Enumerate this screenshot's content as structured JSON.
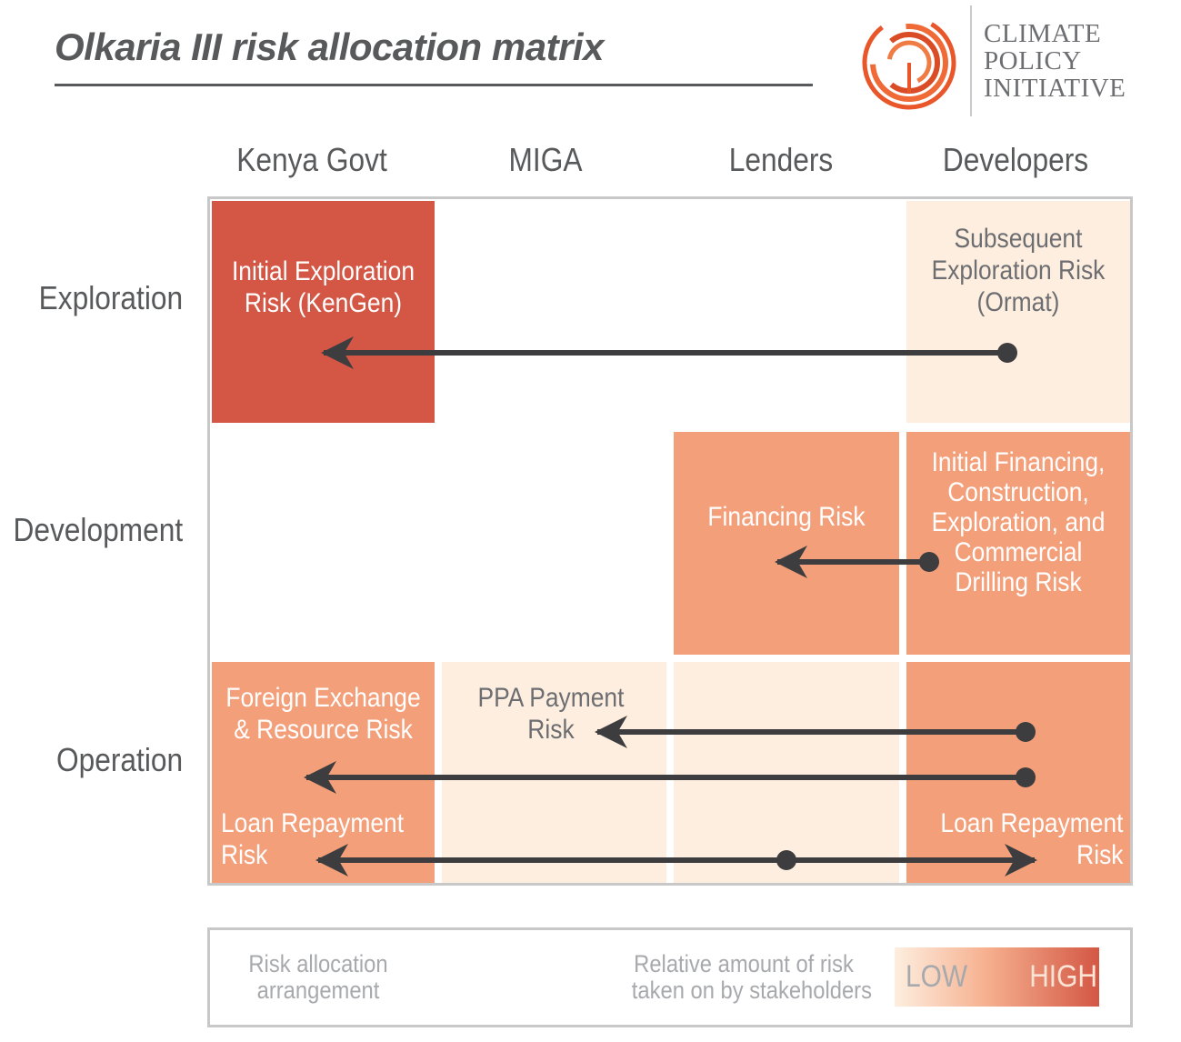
{
  "title": "Olkaria III risk allocation matrix",
  "logo": {
    "lines": [
      "CLIMATE",
      "POLICY",
      "INITIATIVE"
    ]
  },
  "columns": [
    "Kenya Govt",
    "MIGA",
    "Lenders",
    "Developers"
  ],
  "rows": [
    "Exploration",
    "Development",
    "Operation"
  ],
  "cells": {
    "exploration_kenya": [
      "Initial Exploration",
      "Risk (KenGen)"
    ],
    "exploration_developers": [
      "Subsequent",
      "Exploration Risk",
      "(Ormat)"
    ],
    "development_lenders": [
      "Financing Risk"
    ],
    "development_developers": [
      "Initial Financing,",
      "Construction,",
      "Exploration, and",
      "Commercial",
      "Drilling Risk"
    ],
    "operation_kenya_top": [
      "Foreign Exchange",
      "& Resource Risk"
    ],
    "operation_kenya_bottom": [
      "Loan Repayment",
      "Risk"
    ],
    "operation_miga": [
      "PPA Payment",
      "Risk"
    ],
    "operation_developers": [
      "Loan Repayment",
      "Risk"
    ]
  },
  "legend": {
    "arrangement": [
      "Risk allocation",
      "arrangement"
    ],
    "relative": [
      "Relative amount of risk",
      "taken on by stakeholders"
    ],
    "low": "LOW",
    "high": "HIGH"
  },
  "colors": {
    "high_risk": "#d35744",
    "medium_risk": "#f39f7a",
    "low_risk": "#fdeedf",
    "arrow": "#3d3d3f",
    "legend_arrow": "#a7a9ac",
    "logo_orange": "#e8562a"
  }
}
